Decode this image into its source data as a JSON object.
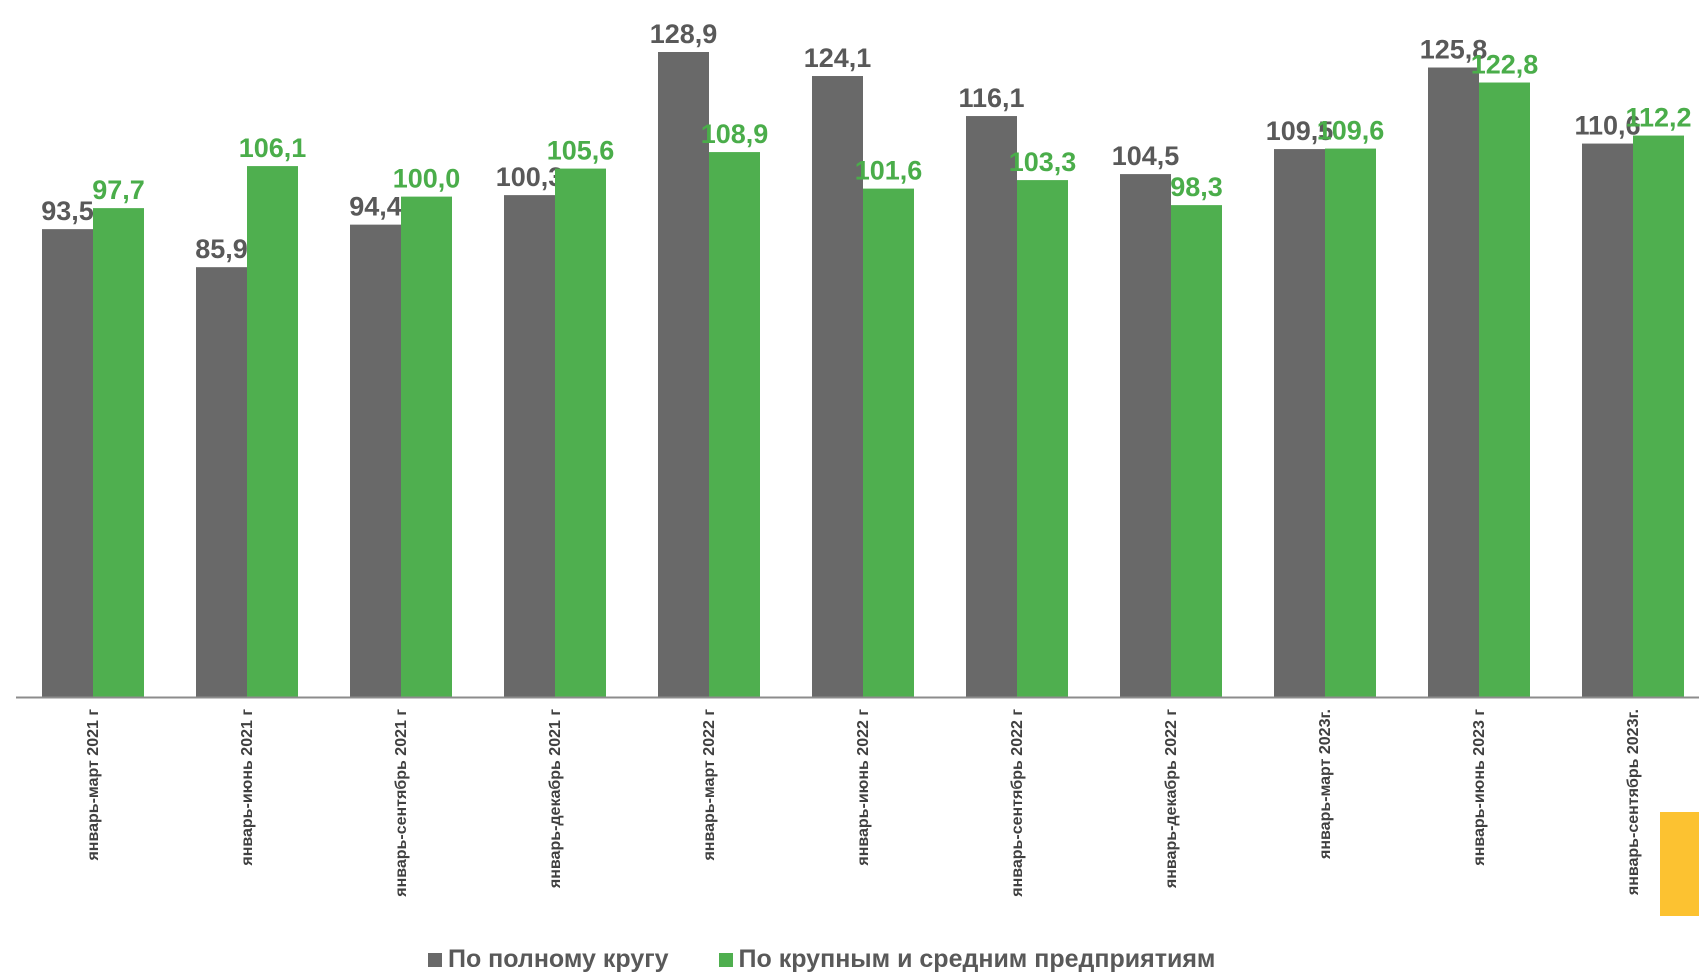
{
  "chart_data": {
    "type": "bar",
    "categories": [
      "январь-март 2021 г",
      "январь-июнь 2021 г",
      "январь-сентябрь 2021 г",
      "январь-декабрь 2021 г",
      "январь-март 2022 г",
      "январь-июнь 2022 г",
      "январь-сентябрь 2022 г",
      "январь-декабрь 2022 г",
      "январь-март 2023г.",
      "январь-июнь 2023 г",
      "январь-сентябрь 2023г."
    ],
    "series": [
      {
        "name": "По полному кругу",
        "color": "#696969",
        "label_color": "#595959",
        "values": [
          93.5,
          85.9,
          94.4,
          100.3,
          128.9,
          124.1,
          116.1,
          104.5,
          109.5,
          125.8,
          110.6
        ],
        "labels": [
          "93,5",
          "85,9",
          "94,4",
          "100,3",
          "128,9",
          "124,1",
          "116,1",
          "104,5",
          "109,5",
          "125,8",
          "110,6"
        ]
      },
      {
        "name": "По крупным и средним предприятиям",
        "color": "#4faf4f",
        "label_color": "#4aad4a",
        "values": [
          97.7,
          106.1,
          100.0,
          105.6,
          108.9,
          101.6,
          103.3,
          98.3,
          109.6,
          122.8,
          112.2
        ],
        "labels": [
          "97,7",
          "106,1",
          "100,0",
          "105,6",
          "108,9",
          "101,6",
          "103,3",
          "98,3",
          "109,6",
          "122,8",
          "112,2"
        ]
      }
    ],
    "ylim": [
      0,
      128.9
    ],
    "grid": false,
    "legend_position": "bottom"
  }
}
